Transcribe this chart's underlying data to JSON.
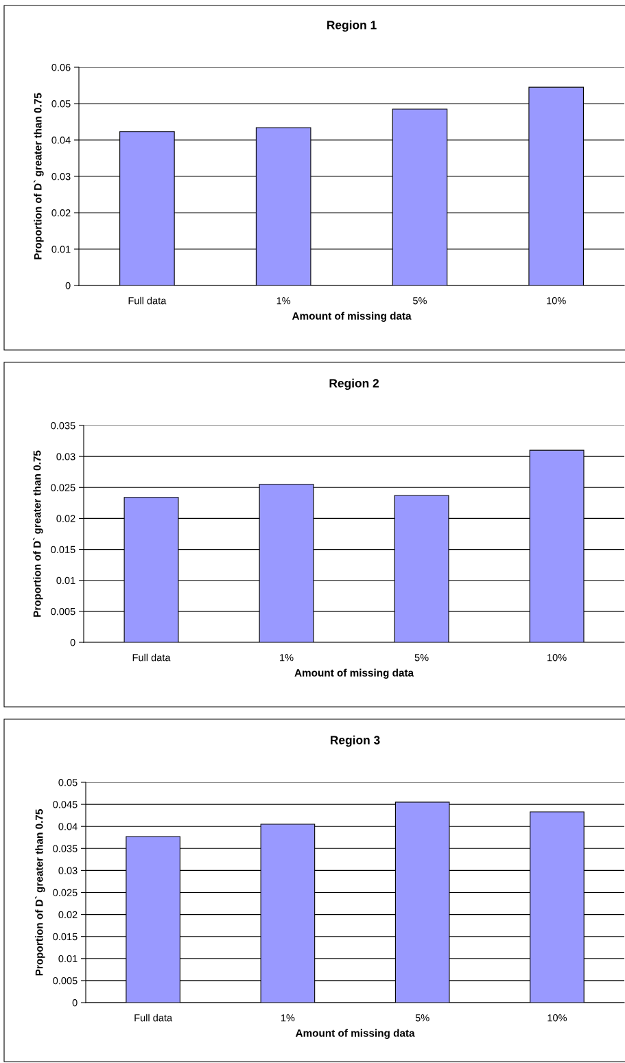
{
  "chart_data": [
    {
      "type": "bar",
      "title": "Region 1",
      "xlabel": "Amount of missing data",
      "ylabel": "Proportion of D` greater than 0.75",
      "categories": [
        "Full data",
        "1%",
        "5%",
        "10%"
      ],
      "values": [
        0.0423,
        0.0434,
        0.0485,
        0.0545
      ],
      "color": "#9999ff",
      "ylim": [
        0,
        0.06
      ],
      "yticks": [
        0,
        0.01,
        0.02,
        0.03,
        0.04,
        0.05,
        0.06
      ],
      "grid": "y"
    },
    {
      "type": "bar",
      "title": "Region 2",
      "xlabel": "Amount of missing data",
      "ylabel": "Proportion of D` greater than 0.75",
      "categories": [
        "Full data",
        "1%",
        "5%",
        "10%"
      ],
      "values": [
        0.0234,
        0.0255,
        0.0237,
        0.031
      ],
      "color": "#9999ff",
      "ylim": [
        0,
        0.035
      ],
      "yticks": [
        0,
        0.005,
        0.01,
        0.015,
        0.02,
        0.025,
        0.03,
        0.035
      ],
      "grid": "y"
    },
    {
      "type": "bar",
      "title": "Region 3",
      "xlabel": "Amount of missing data",
      "ylabel": "Proportion of D` greater than 0.75",
      "categories": [
        "Full data",
        "1%",
        "5%",
        "10%"
      ],
      "values": [
        0.0377,
        0.0405,
        0.0455,
        0.0433
      ],
      "color": "#9999ff",
      "ylim": [
        0,
        0.05
      ],
      "yticks": [
        0,
        0.005,
        0.01,
        0.015,
        0.02,
        0.025,
        0.03,
        0.035,
        0.04,
        0.045,
        0.05
      ],
      "grid": "y"
    }
  ]
}
